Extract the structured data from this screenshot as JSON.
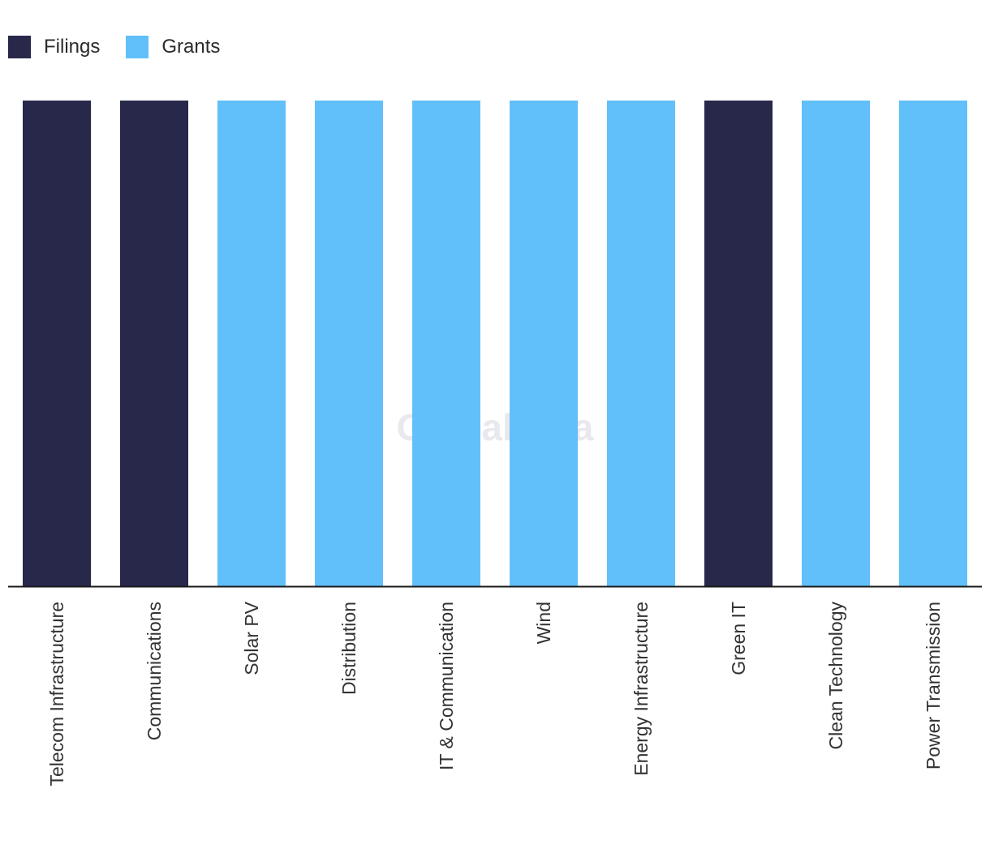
{
  "legend": {
    "items": [
      {
        "label": "Filings",
        "color": "#27284a"
      },
      {
        "label": "Grants",
        "color": "#61c0f9"
      }
    ]
  },
  "watermark": "GlobalData",
  "chart_data": {
    "type": "bar",
    "stacked": true,
    "normalized": true,
    "categories": [
      "Telecom Infrastructure",
      "Communications",
      "Solar PV",
      "Distribution",
      "IT & Communication",
      "Wind",
      "Energy Infrastructure",
      "Green IT",
      "Clean Technology",
      "Power Transmission"
    ],
    "series": [
      {
        "name": "Filings",
        "color": "#27284a",
        "values": [
          100,
          100,
          0,
          0,
          0,
          0,
          0,
          100,
          0,
          0
        ]
      },
      {
        "name": "Grants",
        "color": "#61c0f9",
        "values": [
          0,
          0,
          100,
          100,
          100,
          100,
          100,
          0,
          100,
          100
        ]
      }
    ],
    "ylim": [
      0,
      100
    ],
    "grid": false,
    "legend_position": "top-left"
  }
}
